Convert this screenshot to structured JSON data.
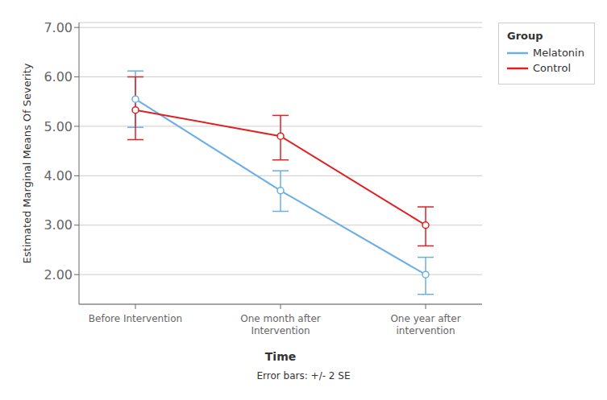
{
  "chart_data": {
    "type": "line",
    "x_label": "Time",
    "y_label": "Estimated Marginal Means Of Severity",
    "legend_title": "Group",
    "annotations": [
      "Error bars: +/- 2 SE"
    ],
    "categories": [
      "Before Intervention",
      "One month after\nIntervention",
      "One year after\nintervention"
    ],
    "series": [
      {
        "name": "Melatonin",
        "color": "#6aaee8",
        "marker": "circle",
        "values": [
          5.55,
          3.7,
          2.0
        ],
        "error_lower": [
          0.57,
          0.42,
          0.4
        ],
        "error_upper": [
          0.57,
          0.4,
          0.35
        ]
      },
      {
        "name": "Control",
        "color": "#e02020",
        "marker": "circle",
        "values": [
          5.33,
          4.8,
          3.0
        ],
        "error_lower": [
          0.6,
          0.48,
          0.42
        ],
        "error_upper": [
          0.67,
          0.42,
          0.37
        ]
      }
    ],
    "ylim": [
      1.4,
      7.1
    ],
    "yticks": [
      {
        "value": 2.0,
        "label": "2.00"
      },
      {
        "value": 3.0,
        "label": "3.00"
      },
      {
        "value": 4.0,
        "label": "4.00"
      },
      {
        "value": 5.0,
        "label": "5.00"
      },
      {
        "value": 6.0,
        "label": "6.00"
      },
      {
        "value": 7.0,
        "label": "7.00"
      }
    ],
    "grid": true,
    "legend": "upper right"
  }
}
